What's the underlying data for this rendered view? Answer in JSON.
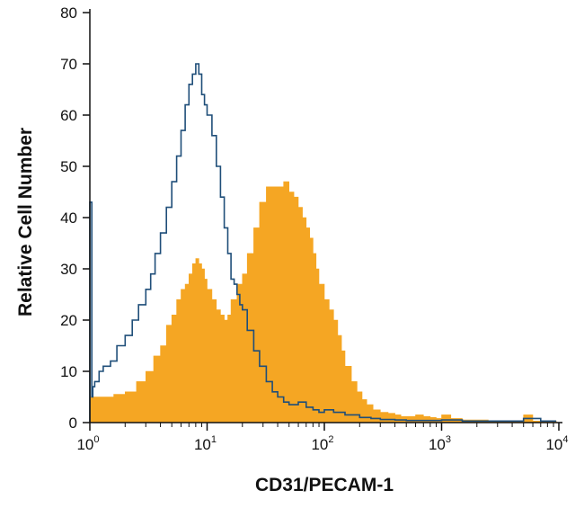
{
  "chart_data": {
    "type": "area",
    "xlabel": "CD31/PECAM-1",
    "ylabel": "Relative Cell Number",
    "x_scale": "log",
    "xlim": [
      1,
      10000
    ],
    "ylim": [
      0,
      80
    ],
    "x_ticks": [
      {
        "value": 1,
        "base": "10",
        "exp": "0"
      },
      {
        "value": 10,
        "base": "10",
        "exp": "1"
      },
      {
        "value": 100,
        "base": "10",
        "exp": "2"
      },
      {
        "value": 1000,
        "base": "10",
        "exp": "3"
      },
      {
        "value": 10000,
        "base": "10",
        "exp": "4"
      }
    ],
    "y_ticks": [
      "0",
      "10",
      "20",
      "30",
      "40",
      "50",
      "60",
      "70",
      "80"
    ],
    "grid": false,
    "legend": "none",
    "series": [
      {
        "style": "filled",
        "color": "#f5a623",
        "x": [
          1.0,
          1.3,
          1.6,
          2.0,
          2.5,
          3.0,
          3.5,
          4.0,
          4.5,
          5.0,
          5.5,
          6.0,
          6.5,
          7.0,
          7.5,
          8.0,
          8.5,
          9.0,
          9.5,
          10.0,
          11.0,
          12.0,
          13.0,
          14.0,
          15.0,
          16.0,
          18.0,
          20.0,
          22.0,
          25.0,
          28.0,
          32.0,
          36.0,
          40.0,
          45.0,
          50.0,
          55.0,
          60.0,
          65.0,
          70.0,
          75.0,
          80.0,
          85.0,
          90.0,
          100.0,
          110.0,
          120.0,
          130.0,
          140.0,
          150.0,
          170.0,
          190.0,
          210.0,
          230.0,
          260.0,
          300.0,
          350.0,
          400.0,
          450.0,
          500.0,
          600.0,
          700.0,
          800.0,
          900.0,
          1000.0,
          1200.0,
          1500.0,
          2000.0,
          2500.0,
          3000.0,
          3500.0,
          4000.0,
          4500.0,
          5000.0,
          6000.0,
          7000.0,
          8000.0,
          9000.0,
          9500.0
        ],
        "values": [
          5,
          5,
          5.5,
          6,
          8,
          10,
          13,
          15,
          19,
          21,
          24,
          26,
          27,
          29,
          31,
          32,
          31,
          30,
          28,
          26,
          24,
          22,
          21,
          20,
          21,
          24,
          27,
          29,
          33,
          38,
          43,
          46,
          46,
          46,
          47,
          45,
          44,
          42,
          40,
          38,
          36,
          33,
          30,
          27,
          24,
          22,
          20,
          17,
          14,
          11,
          8,
          6,
          4.5,
          3.5,
          2.5,
          2,
          1.8,
          1.5,
          1.2,
          1.2,
          1.5,
          1.2,
          1,
          0.8,
          1.5,
          0.8,
          0.5,
          0.5,
          0.3,
          0.3,
          0.3,
          0.3,
          0.3,
          1.5,
          0.3,
          0.3,
          0.3,
          0.3,
          0
        ]
      },
      {
        "style": "line",
        "color": "#1f4e79",
        "x": [
          1.0,
          1.02,
          1.04,
          1.06,
          1.1,
          1.2,
          1.3,
          1.5,
          1.7,
          2.0,
          2.3,
          2.6,
          3.0,
          3.3,
          3.6,
          4.0,
          4.5,
          5.0,
          5.5,
          6.0,
          6.5,
          7.0,
          7.5,
          8.0,
          8.5,
          9.0,
          9.5,
          10.0,
          11.0,
          12.0,
          13.0,
          14.0,
          15.0,
          16.0,
          17.0,
          18.0,
          19.0,
          20.0,
          22.0,
          25.0,
          28.0,
          32.0,
          36.0,
          40.0,
          45.0,
          50.0,
          60.0,
          70.0,
          80.0,
          90.0,
          100.0,
          120.0,
          150.0,
          200.0,
          250.0,
          300.0,
          400.0,
          500.0,
          700.0,
          1000.0,
          1500.0,
          2000.0,
          3000.0,
          5000.0,
          7000.0,
          9000.0,
          9500.0
        ],
        "values": [
          43,
          43,
          5,
          7,
          8,
          10,
          11,
          12,
          15,
          17,
          20,
          23,
          26,
          29,
          33,
          37,
          42,
          47,
          52,
          57,
          62,
          66,
          68,
          70,
          68,
          64,
          62,
          60,
          56,
          50,
          44,
          38,
          33,
          28,
          27,
          25,
          23,
          22,
          18,
          14,
          11,
          8,
          6,
          5,
          4,
          3.5,
          4,
          3,
          2.5,
          2,
          2.5,
          2,
          1.5,
          1,
          0.8,
          0.6,
          0.5,
          0.4,
          0.4,
          0.5,
          0.3,
          0.3,
          0.3,
          0.8,
          0.3,
          0.3,
          0.3
        ]
      }
    ]
  }
}
